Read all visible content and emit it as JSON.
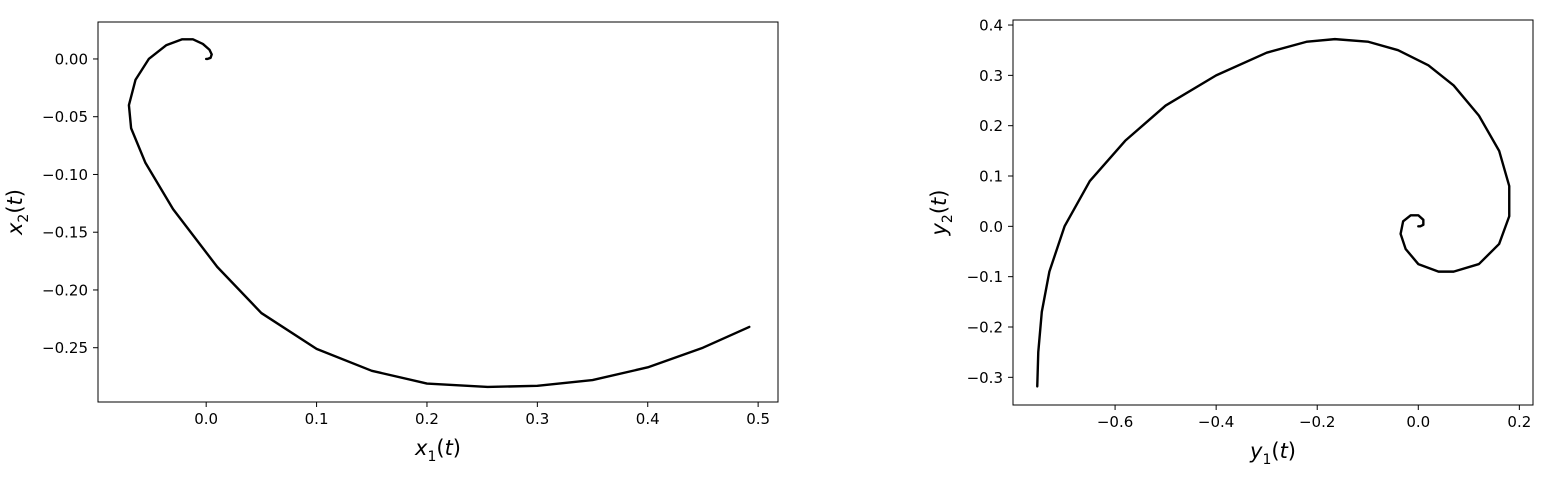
{
  "chart_data": [
    {
      "type": "line",
      "title": "",
      "xlabel": {
        "var": "x",
        "sub": "1",
        "arg": "t"
      },
      "ylabel": {
        "var": "x",
        "sub": "2",
        "arg": "t"
      },
      "xlim": [
        -0.098,
        0.518
      ],
      "ylim": [
        -0.297,
        0.032
      ],
      "xticks": [
        0.0,
        0.1,
        0.2,
        0.3,
        0.4,
        0.5
      ],
      "xtick_labels": [
        "0.0",
        "0.1",
        "0.2",
        "0.3",
        "0.4",
        "0.5"
      ],
      "yticks": [
        0.0,
        -0.05,
        -0.1,
        -0.15,
        -0.2,
        -0.25
      ],
      "ytick_labels": [
        "0.00",
        "−0.05",
        "−0.10",
        "−0.15",
        "−0.20",
        "−0.25"
      ],
      "grid": false,
      "line_color": "#000000",
      "series": [
        {
          "x": [
            0.492,
            0.45,
            0.4,
            0.35,
            0.3,
            0.255,
            0.2,
            0.15,
            0.1,
            0.05,
            0.01,
            -0.03,
            -0.055,
            -0.068,
            -0.07,
            -0.064,
            -0.052,
            -0.036,
            -0.022,
            -0.012,
            -0.003,
            0.003,
            0.005,
            0.004,
            0.001,
            0.0
          ],
          "y": [
            -0.232,
            -0.25,
            -0.267,
            -0.278,
            -0.283,
            -0.284,
            -0.281,
            -0.27,
            -0.251,
            -0.22,
            -0.18,
            -0.13,
            -0.09,
            -0.06,
            -0.04,
            -0.018,
            0.0,
            0.012,
            0.017,
            0.017,
            0.013,
            0.008,
            0.004,
            0.001,
            0.0,
            0.0
          ]
        }
      ]
    },
    {
      "type": "line",
      "title": "",
      "xlabel": {
        "var": "y",
        "sub": "1",
        "arg": "t"
      },
      "ylabel": {
        "var": "y",
        "sub": "2",
        "arg": "t"
      },
      "xlim": [
        -0.802,
        0.227
      ],
      "ylim": [
        -0.355,
        0.41
      ],
      "xticks": [
        -0.6,
        -0.4,
        -0.2,
        0.0,
        0.2
      ],
      "xtick_labels": [
        "−0.6",
        "−0.4",
        "−0.2",
        "0.0",
        "0.2"
      ],
      "yticks": [
        0.4,
        0.3,
        0.2,
        0.1,
        0.0,
        -0.1,
        -0.2,
        -0.3
      ],
      "ytick_labels": [
        "0.4",
        "0.3",
        "0.2",
        "0.1",
        "0.0",
        "−0.1",
        "−0.2",
        "−0.3"
      ],
      "grid": false,
      "line_color": "#000000",
      "series": [
        {
          "x": [
            -0.754,
            -0.752,
            -0.745,
            -0.73,
            -0.7,
            -0.65,
            -0.58,
            -0.5,
            -0.4,
            -0.3,
            -0.22,
            -0.165,
            -0.1,
            -0.04,
            0.02,
            0.07,
            0.12,
            0.16,
            0.18,
            0.18,
            0.16,
            0.12,
            0.07,
            0.04,
            0.0,
            -0.025,
            -0.035,
            -0.03,
            -0.015,
            0.0,
            0.01,
            0.01,
            0.004,
            0.0
          ],
          "y": [
            -0.318,
            -0.25,
            -0.17,
            -0.09,
            0.0,
            0.09,
            0.17,
            0.24,
            0.3,
            0.345,
            0.367,
            0.372,
            0.367,
            0.35,
            0.32,
            0.28,
            0.22,
            0.15,
            0.08,
            0.02,
            -0.035,
            -0.075,
            -0.09,
            -0.09,
            -0.075,
            -0.045,
            -0.015,
            0.01,
            0.022,
            0.022,
            0.013,
            0.003,
            0.0,
            0.0
          ]
        }
      ]
    }
  ]
}
